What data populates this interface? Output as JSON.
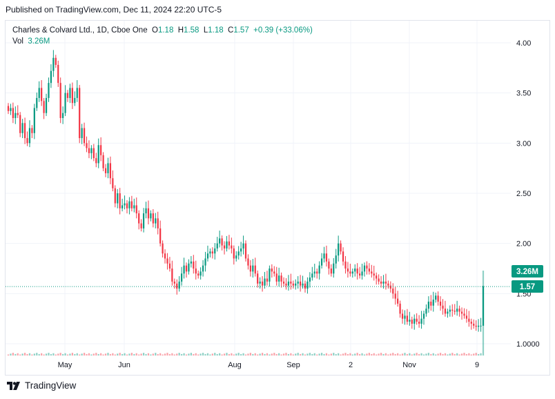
{
  "published": "Published on TradingView.com, Dec 11, 2024 22:20 UTC-5",
  "legend": {
    "title": "Charles & Colvard Ltd., 1D, Cboe One",
    "o_label": "O",
    "o_value": "1.18",
    "h_label": "H",
    "h_value": "1.58",
    "l_label": "L",
    "l_value": "1.18",
    "c_label": "C",
    "c_value": "1.57",
    "change": "+0.39 (+33.06%)",
    "vol_label": "Vol",
    "vol_value": "3.26M"
  },
  "price_badges": {
    "volume": "3.26M",
    "last": "1.57"
  },
  "footer": {
    "brand": "TradingView",
    "logo_icon": "tradingview-logo-icon"
  },
  "colors": {
    "up": "#089981",
    "down": "#f23645",
    "grid": "#f0f3fa",
    "badge": "#089981"
  },
  "chart_data": {
    "type": "candlestick",
    "symbol": "Charles & Colvard Ltd.",
    "interval": "1D",
    "exchange": "Cboe One",
    "y_ticks": [
      "1.0000",
      "1.50",
      "2.00",
      "2.50",
      "3.00",
      "3.50",
      "4.00"
    ],
    "ylim": [
      0.88,
      4.1
    ],
    "x_ticks": [
      "May",
      "Jun",
      "Aug",
      "Sep",
      "2",
      "Nov",
      "9"
    ],
    "grid": true,
    "last_close": 1.57,
    "last_volume": "3.26M",
    "close_series": [
      3.32,
      3.35,
      3.25,
      3.3,
      3.28,
      3.1,
      3.2,
      3.05,
      3.0,
      3.15,
      3.1,
      3.35,
      3.45,
      3.55,
      3.42,
      3.3,
      3.45,
      3.6,
      3.72,
      3.85,
      3.78,
      3.6,
      3.25,
      3.3,
      3.5,
      3.45,
      3.55,
      3.4,
      3.45,
      3.55,
      3.05,
      3.15,
      3.0,
      2.95,
      2.9,
      2.95,
      2.85,
      2.8,
      2.98,
      2.88,
      2.75,
      2.7,
      2.8,
      2.65,
      2.55,
      2.4,
      2.5,
      2.35,
      2.38,
      2.4,
      2.35,
      2.42,
      2.35,
      2.38,
      2.3,
      2.2,
      2.15,
      2.3,
      2.35,
      2.25,
      2.3,
      2.2,
      2.25,
      2.15,
      2.0,
      1.9,
      1.85,
      1.8,
      1.75,
      1.62,
      1.6,
      1.55,
      1.62,
      1.7,
      1.78,
      1.72,
      1.8,
      1.82,
      1.75,
      1.7,
      1.68,
      1.72,
      1.78,
      1.85,
      1.9,
      1.92,
      1.9,
      1.95,
      2.0,
      2.05,
      1.98,
      1.95,
      2.02,
      1.98,
      1.95,
      1.85,
      1.88,
      1.92,
      1.95,
      2.0,
      1.85,
      1.78,
      1.72,
      1.78,
      1.7,
      1.6,
      1.62,
      1.58,
      1.65,
      1.62,
      1.75,
      1.72,
      1.7,
      1.62,
      1.68,
      1.62,
      1.6,
      1.58,
      1.62,
      1.6,
      1.58,
      1.6,
      1.62,
      1.58,
      1.6,
      1.55,
      1.62,
      1.66,
      1.7,
      1.72,
      1.7,
      1.78,
      1.85,
      1.9,
      1.82,
      1.75,
      1.7,
      1.8,
      1.88,
      2.0,
      1.92,
      1.82,
      1.75,
      1.72,
      1.7,
      1.72,
      1.75,
      1.7,
      1.68,
      1.72,
      1.78,
      1.75,
      1.72,
      1.7,
      1.68,
      1.65,
      1.62,
      1.6,
      1.62,
      1.6,
      1.58,
      1.55,
      1.5,
      1.45,
      1.4,
      1.3,
      1.25,
      1.28,
      1.22,
      1.24,
      1.2,
      1.25,
      1.22,
      1.2,
      1.25,
      1.3,
      1.35,
      1.42,
      1.38,
      1.44,
      1.48,
      1.42,
      1.38,
      1.35,
      1.3,
      1.32,
      1.34,
      1.33,
      1.32,
      1.35,
      1.32,
      1.3,
      1.28,
      1.25,
      1.22,
      1.2,
      1.18,
      1.17,
      1.18,
      1.18,
      1.57
    ]
  }
}
